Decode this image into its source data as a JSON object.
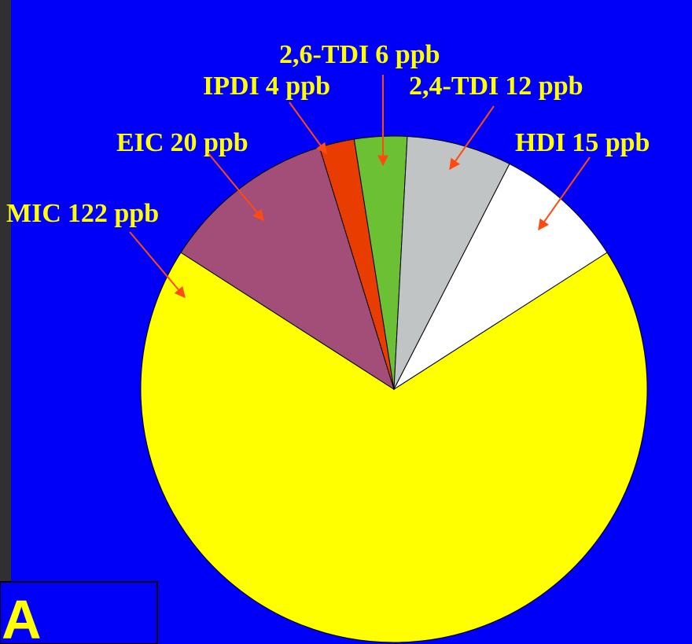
{
  "chart_data": {
    "type": "pie",
    "categories": [
      "MIC",
      "EIC",
      "IPDI",
      "2,6-TDI",
      "2,4-TDI",
      "HDI"
    ],
    "values": [
      122,
      20,
      4,
      6,
      12,
      15
    ],
    "value_labels": [
      "122 ppb",
      "20 ppb",
      "4 ppb",
      "6 ppb",
      "12 ppb",
      "15 ppb"
    ],
    "colors": [
      "#ffff00",
      "#a24e78",
      "#e83c00",
      "#6cc034",
      "#c0c4c4",
      "#ffffff"
    ],
    "annotation": "A"
  }
}
